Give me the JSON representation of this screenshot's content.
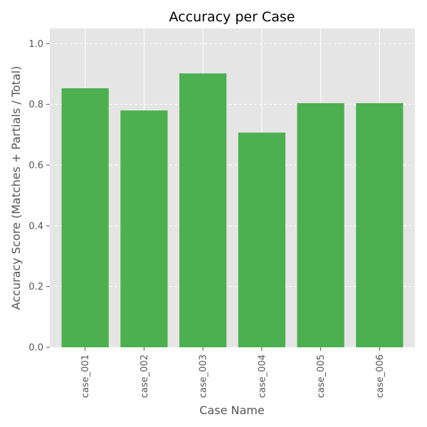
{
  "chart_data": {
    "type": "bar",
    "title": "Accuracy per Case",
    "xlabel": "Case Name",
    "ylabel": "Accuracy Score (Matches + Partials / Total)",
    "categories": [
      "case_001",
      "case_002",
      "case_003",
      "case_004",
      "case_005",
      "case_006"
    ],
    "values": [
      0.853,
      0.78,
      0.902,
      0.707,
      0.804,
      0.804
    ],
    "ylim": [
      0,
      1.05
    ],
    "yticks": [
      0.0,
      0.2,
      0.4,
      0.6,
      0.8,
      1.0
    ],
    "ytick_labels": [
      "0.0",
      "0.2",
      "0.4",
      "0.6",
      "0.8",
      "1.0"
    ],
    "grid": true,
    "colors": {
      "bar": "#4caf50",
      "plot_background": "#e5e5e5",
      "grid": "#ffffff",
      "text": "#555555"
    }
  }
}
